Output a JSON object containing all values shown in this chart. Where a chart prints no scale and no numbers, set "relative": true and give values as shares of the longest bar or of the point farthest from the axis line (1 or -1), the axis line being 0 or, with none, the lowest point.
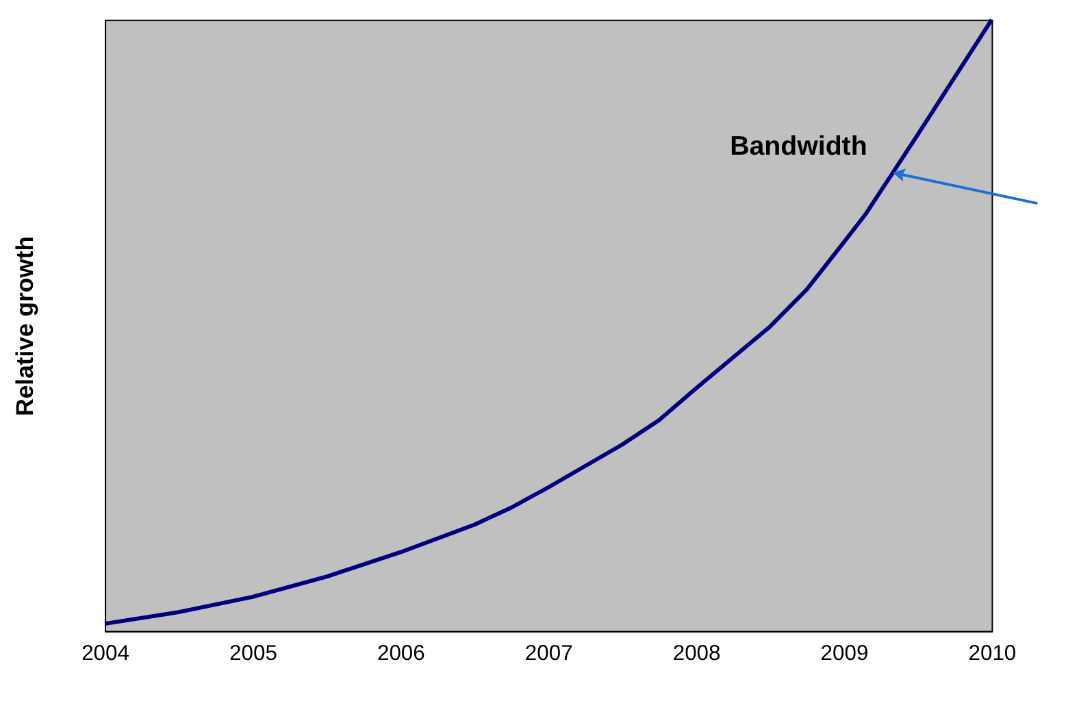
{
  "chart_data": {
    "type": "line",
    "relative": true,
    "ylabel": "Relative growth",
    "x": [
      2004,
      2004.5,
      2005,
      2005.5,
      2006,
      2006.5,
      2006.75,
      2007,
      2007.5,
      2007.75,
      2008,
      2008.5,
      2008.75,
      2009,
      2009.15,
      2009.5,
      2010
    ],
    "series": [
      {
        "color": "#000080",
        "values": [
          0.012,
          0.031,
          0.056,
          0.089,
          0.129,
          0.174,
          0.202,
          0.235,
          0.305,
          0.345,
          0.397,
          0.498,
          0.559,
          0.636,
          0.683,
          0.812,
          1
        ]
      }
    ],
    "xlim": [
      2004,
      2010
    ],
    "xticks": [
      2004,
      2005,
      2006,
      2007,
      2008,
      2009,
      2010
    ],
    "tick_labels": "x",
    "grid": false,
    "marker": "none",
    "line_style": "solid",
    "annotations": [
      {
        "text": "Bandwidth",
        "x": 2009.33,
        "y": 0.749
      }
    ]
  }
}
